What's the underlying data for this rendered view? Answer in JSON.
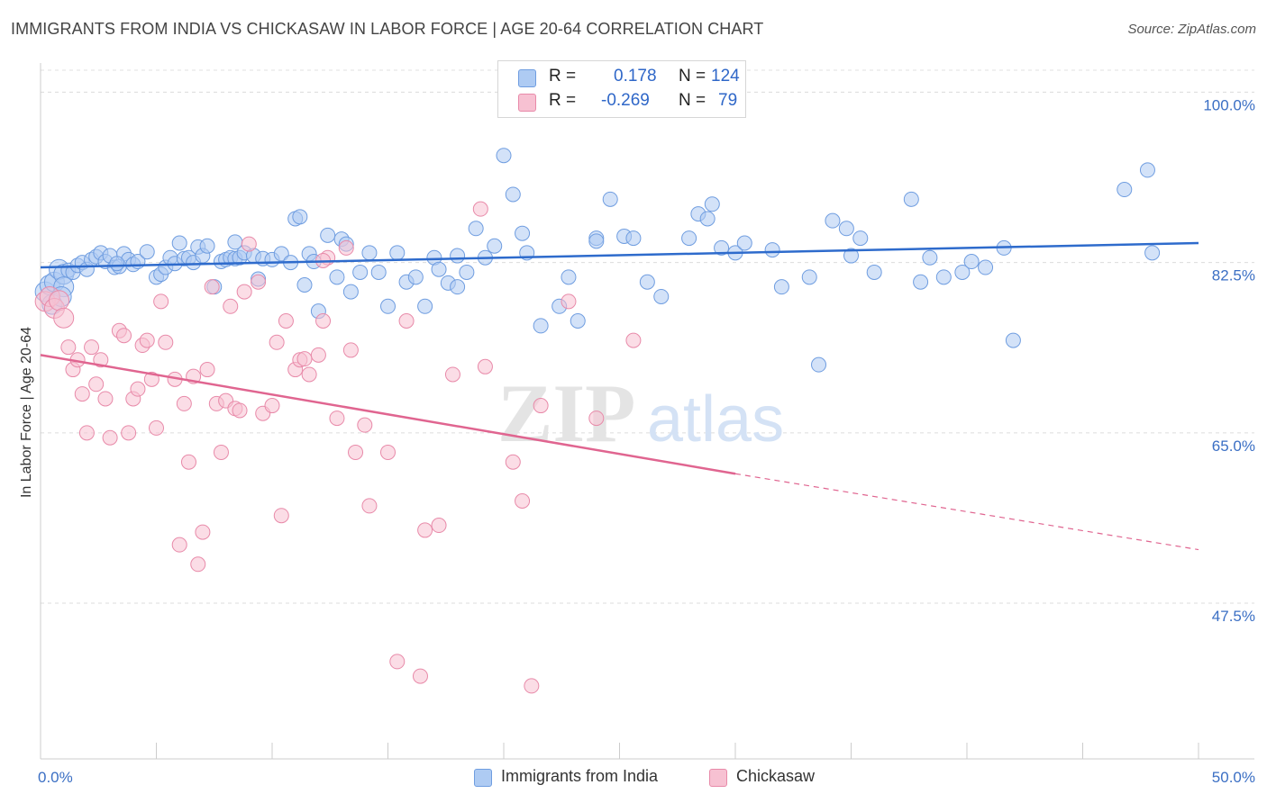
{
  "title": "IMMIGRANTS FROM INDIA VS CHICKASAW IN LABOR FORCE | AGE 20-64 CORRELATION CHART",
  "source": "Source: ZipAtlas.com",
  "watermark": {
    "zip": "ZIP",
    "atlas": "atlas"
  },
  "legend": {
    "rows": [
      {
        "r_label": "R =",
        "r_value": "0.178",
        "n_label": "N =",
        "n_value": "124",
        "color": "#aecbf3",
        "border": "#6f9de0"
      },
      {
        "r_label": "R =",
        "r_value": "-0.269",
        "n_label": "N =",
        "n_value": "79",
        "color": "#f7c1d2",
        "border": "#e88aa9"
      }
    ]
  },
  "bottom_legend": [
    {
      "label": "Immigrants from India",
      "color": "#aecbf3",
      "border": "#6f9de0"
    },
    {
      "label": "Chickasaw",
      "color": "#f7c1d2",
      "border": "#e88aa9"
    }
  ],
  "chart_data": {
    "type": "scatter",
    "title": "IMMIGRANTS FROM INDIA VS CHICKASAW IN LABOR FORCE | AGE 20-64 CORRELATION CHART",
    "xlabel": "",
    "ylabel": "In Labor Force | Age 20-64",
    "xlim": [
      0,
      50
    ],
    "ylim": [
      31.5,
      103
    ],
    "x_tick_labels": [
      "0.0%",
      "50.0%"
    ],
    "y_ticks": [
      47.5,
      65.0,
      82.5,
      100.0
    ],
    "y_tick_labels": [
      "47.5%",
      "65.0%",
      "82.5%",
      "100.0%"
    ],
    "grid": true,
    "legend_position": "top-center",
    "series": [
      {
        "name": "Immigrants from India",
        "color": "#6f9de0",
        "fill": "#aecbf3",
        "trend": {
          "x": [
            0,
            50
          ],
          "y": [
            82.0,
            84.5
          ],
          "color": "#2e6bcc"
        },
        "points": [
          [
            0.2,
            79.5
          ],
          [
            0.4,
            80.2
          ],
          [
            0.6,
            80.5
          ],
          [
            0.8,
            81.8
          ],
          [
            1.0,
            81.3
          ],
          [
            1.2,
            81.7
          ],
          [
            1.4,
            81.5
          ],
          [
            1.6,
            82.2
          ],
          [
            1.8,
            82.5
          ],
          [
            2.0,
            81.8
          ],
          [
            2.2,
            82.8
          ],
          [
            2.4,
            83.1
          ],
          [
            2.6,
            83.5
          ],
          [
            2.8,
            82.6
          ],
          [
            3.0,
            83.2
          ],
          [
            3.2,
            82.0
          ],
          [
            3.4,
            82.1
          ],
          [
            3.6,
            83.4
          ],
          [
            3.8,
            82.8
          ],
          [
            4.0,
            82.3
          ],
          [
            4.2,
            82.6
          ],
          [
            4.6,
            83.6
          ],
          [
            5.0,
            81.0
          ],
          [
            5.2,
            81.3
          ],
          [
            5.4,
            82.0
          ],
          [
            5.6,
            83.0
          ],
          [
            5.8,
            82.4
          ],
          [
            6.0,
            84.5
          ],
          [
            6.2,
            82.9
          ],
          [
            6.4,
            83.0
          ],
          [
            6.6,
            82.5
          ],
          [
            6.8,
            84.1
          ],
          [
            7.0,
            83.2
          ],
          [
            7.2,
            84.2
          ],
          [
            7.5,
            80.0
          ],
          [
            7.8,
            82.6
          ],
          [
            8.0,
            82.8
          ],
          [
            8.2,
            83.0
          ],
          [
            8.4,
            82.9
          ],
          [
            8.6,
            83.0
          ],
          [
            8.8,
            83.5
          ],
          [
            9.2,
            83.2
          ],
          [
            9.6,
            82.9
          ],
          [
            10.0,
            82.8
          ],
          [
            10.4,
            83.4
          ],
          [
            10.8,
            82.5
          ],
          [
            11.0,
            87.0
          ],
          [
            11.2,
            87.2
          ],
          [
            11.4,
            80.2
          ],
          [
            11.6,
            83.4
          ],
          [
            11.8,
            82.6
          ],
          [
            12.0,
            77.5
          ],
          [
            12.4,
            85.3
          ],
          [
            12.8,
            81.0
          ],
          [
            13.0,
            84.9
          ],
          [
            13.2,
            84.4
          ],
          [
            13.4,
            79.5
          ],
          [
            13.8,
            81.5
          ],
          [
            14.2,
            83.5
          ],
          [
            14.6,
            81.5
          ],
          [
            15.0,
            78.0
          ],
          [
            15.4,
            83.5
          ],
          [
            15.8,
            80.5
          ],
          [
            16.2,
            81.0
          ],
          [
            16.6,
            78.0
          ],
          [
            17.0,
            83.0
          ],
          [
            17.2,
            81.8
          ],
          [
            17.6,
            80.4
          ],
          [
            18.0,
            80.0
          ],
          [
            18.4,
            81.5
          ],
          [
            18.8,
            86.0
          ],
          [
            19.2,
            83.0
          ],
          [
            19.6,
            84.2
          ],
          [
            20.0,
            93.5
          ],
          [
            20.4,
            89.5
          ],
          [
            20.8,
            85.5
          ],
          [
            21.0,
            83.5
          ],
          [
            21.6,
            76.0
          ],
          [
            22.4,
            78.0
          ],
          [
            22.8,
            81.0
          ],
          [
            23.2,
            76.5
          ],
          [
            24.0,
            85.0
          ],
          [
            24.6,
            89.0
          ],
          [
            25.2,
            85.2
          ],
          [
            25.6,
            85.0
          ],
          [
            26.2,
            80.5
          ],
          [
            26.8,
            79.0
          ],
          [
            28.0,
            85.0
          ],
          [
            28.4,
            87.5
          ],
          [
            28.8,
            87.0
          ],
          [
            29.0,
            88.5
          ],
          [
            29.4,
            84.0
          ],
          [
            30.0,
            83.5
          ],
          [
            31.6,
            83.8
          ],
          [
            32.0,
            80.0
          ],
          [
            33.2,
            81.0
          ],
          [
            33.6,
            72.0
          ],
          [
            34.2,
            86.8
          ],
          [
            34.8,
            86.0
          ],
          [
            35.4,
            85.0
          ],
          [
            36.0,
            81.5
          ],
          [
            37.6,
            89.0
          ],
          [
            38.0,
            80.5
          ],
          [
            38.4,
            83.0
          ],
          [
            39.0,
            81.0
          ],
          [
            39.8,
            81.5
          ],
          [
            40.2,
            82.6
          ],
          [
            40.8,
            82.0
          ],
          [
            41.6,
            84.0
          ],
          [
            42.0,
            74.5
          ],
          [
            48.0,
            83.5
          ],
          [
            47.8,
            92.0
          ],
          [
            46.8,
            90.0
          ],
          [
            35.0,
            83.2
          ],
          [
            30.4,
            84.5
          ],
          [
            18.0,
            83.2
          ],
          [
            24.0,
            84.7
          ],
          [
            8.4,
            84.6
          ],
          [
            1.0,
            80.0
          ],
          [
            0.5,
            78.2
          ],
          [
            0.9,
            79.0
          ],
          [
            3.3,
            82.4
          ],
          [
            9.4,
            80.8
          ]
        ]
      },
      {
        "name": "Chickasaw",
        "color": "#e88aa9",
        "fill": "#f7c1d2",
        "trend": {
          "x": [
            0,
            30,
            50
          ],
          "y": [
            73.0,
            60.8,
            53.0
          ],
          "solid_until": 30,
          "color": "#e06590"
        },
        "points": [
          [
            0.2,
            78.5
          ],
          [
            0.4,
            79.0
          ],
          [
            0.6,
            77.8
          ],
          [
            0.8,
            78.6
          ],
          [
            1.0,
            76.8
          ],
          [
            1.2,
            73.8
          ],
          [
            1.4,
            71.5
          ],
          [
            1.6,
            72.5
          ],
          [
            1.8,
            69.0
          ],
          [
            2.0,
            65.0
          ],
          [
            2.2,
            73.8
          ],
          [
            2.4,
            70.0
          ],
          [
            2.6,
            72.5
          ],
          [
            2.8,
            68.5
          ],
          [
            3.0,
            64.5
          ],
          [
            3.4,
            75.5
          ],
          [
            3.6,
            75.0
          ],
          [
            3.8,
            65.0
          ],
          [
            4.0,
            68.5
          ],
          [
            4.2,
            69.5
          ],
          [
            4.4,
            74.0
          ],
          [
            4.6,
            74.5
          ],
          [
            4.8,
            70.5
          ],
          [
            5.0,
            65.5
          ],
          [
            5.2,
            78.5
          ],
          [
            5.4,
            74.3
          ],
          [
            5.8,
            70.5
          ],
          [
            6.0,
            53.5
          ],
          [
            6.2,
            68.0
          ],
          [
            6.4,
            62.0
          ],
          [
            6.6,
            70.8
          ],
          [
            6.8,
            51.5
          ],
          [
            7.0,
            54.8
          ],
          [
            7.2,
            71.5
          ],
          [
            7.4,
            80.0
          ],
          [
            7.6,
            68.0
          ],
          [
            7.8,
            63.0
          ],
          [
            8.0,
            68.3
          ],
          [
            8.2,
            78.0
          ],
          [
            8.4,
            67.5
          ],
          [
            8.6,
            67.3
          ],
          [
            8.8,
            79.5
          ],
          [
            9.0,
            84.4
          ],
          [
            9.4,
            80.5
          ],
          [
            9.6,
            67.0
          ],
          [
            10.0,
            67.8
          ],
          [
            10.2,
            74.3
          ],
          [
            10.4,
            56.5
          ],
          [
            10.6,
            76.5
          ],
          [
            11.0,
            71.5
          ],
          [
            11.2,
            72.5
          ],
          [
            11.4,
            72.6
          ],
          [
            11.6,
            71.0
          ],
          [
            12.0,
            73.0
          ],
          [
            12.2,
            76.5
          ],
          [
            12.4,
            83.0
          ],
          [
            12.8,
            66.5
          ],
          [
            13.2,
            84.0
          ],
          [
            13.4,
            73.5
          ],
          [
            13.6,
            63.0
          ],
          [
            14.0,
            65.8
          ],
          [
            14.2,
            57.5
          ],
          [
            15.0,
            63.0
          ],
          [
            15.4,
            41.5
          ],
          [
            15.8,
            76.5
          ],
          [
            16.4,
            40.0
          ],
          [
            16.6,
            55.0
          ],
          [
            17.2,
            55.5
          ],
          [
            17.8,
            71.0
          ],
          [
            19.0,
            88.0
          ],
          [
            19.2,
            71.8
          ],
          [
            20.4,
            62.0
          ],
          [
            20.8,
            58.0
          ],
          [
            21.2,
            39.0
          ],
          [
            21.6,
            67.8
          ],
          [
            22.8,
            78.5
          ],
          [
            24.0,
            66.5
          ],
          [
            25.6,
            74.5
          ],
          [
            12.2,
            82.7
          ]
        ]
      }
    ]
  }
}
